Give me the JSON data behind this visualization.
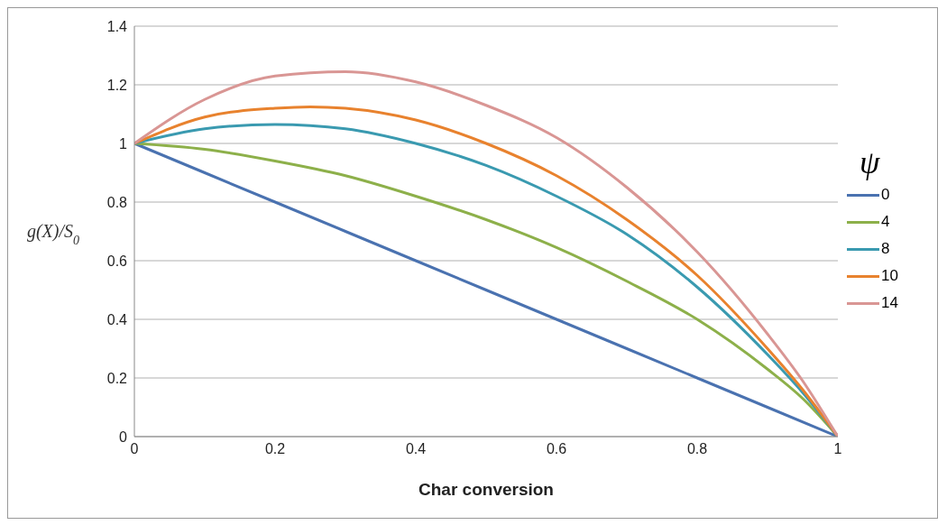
{
  "chart_data": {
    "type": "line",
    "xlabel": "Char conversion",
    "ylabel": "g(X)/S$_{0}$",
    "legend_title": "ψ",
    "legend": "right",
    "grid": "y",
    "marker": "none",
    "line_style": "solid",
    "xlim": [
      0,
      1
    ],
    "xticks": [
      0,
      0.2,
      0.4,
      0.6,
      0.8,
      1
    ],
    "ylim": [
      0,
      1.4
    ],
    "yticks": [
      0,
      0.2,
      0.4,
      0.6,
      0.8,
      1,
      1.2,
      1.4
    ],
    "series": [
      {
        "name": "0",
        "color": "#4a72b0",
        "x": [
          0,
          0.2,
          0.4,
          0.6,
          0.8,
          1
        ],
        "values": [
          1,
          0.8,
          0.6,
          0.4,
          0.2,
          0
        ]
      },
      {
        "name": "4",
        "color": "#8db04a",
        "x": [
          0,
          0.1,
          0.2,
          0.3,
          0.4,
          0.5,
          0.6,
          0.7,
          0.8,
          0.9,
          0.95,
          1
        ],
        "values": [
          1,
          0.98,
          0.94,
          0.89,
          0.82,
          0.74,
          0.645,
          0.53,
          0.4,
          0.23,
          0.13,
          0
        ]
      },
      {
        "name": "8",
        "color": "#3a9ab0",
        "x": [
          0,
          0.1,
          0.2,
          0.3,
          0.4,
          0.5,
          0.6,
          0.7,
          0.8,
          0.9,
          0.95,
          1
        ],
        "values": [
          1,
          1.05,
          1.065,
          1.05,
          1,
          0.925,
          0.82,
          0.69,
          0.51,
          0.28,
          0.15,
          0
        ]
      },
      {
        "name": "10",
        "color": "#e8822e",
        "x": [
          0,
          0.1,
          0.2,
          0.25,
          0.3,
          0.4,
          0.5,
          0.6,
          0.7,
          0.8,
          0.9,
          0.95,
          1
        ],
        "values": [
          1,
          1.09,
          1.12,
          1.125,
          1.12,
          1.08,
          1,
          0.89,
          0.74,
          0.55,
          0.3,
          0.16,
          0
        ]
      },
      {
        "name": "14",
        "color": "#d99694",
        "x": [
          0,
          0.1,
          0.2,
          0.3,
          0.4,
          0.5,
          0.6,
          0.7,
          0.8,
          0.9,
          0.95,
          1
        ],
        "values": [
          1,
          1.15,
          1.23,
          1.245,
          1.21,
          1.13,
          1.02,
          0.85,
          0.63,
          0.35,
          0.19,
          0
        ]
      }
    ]
  }
}
